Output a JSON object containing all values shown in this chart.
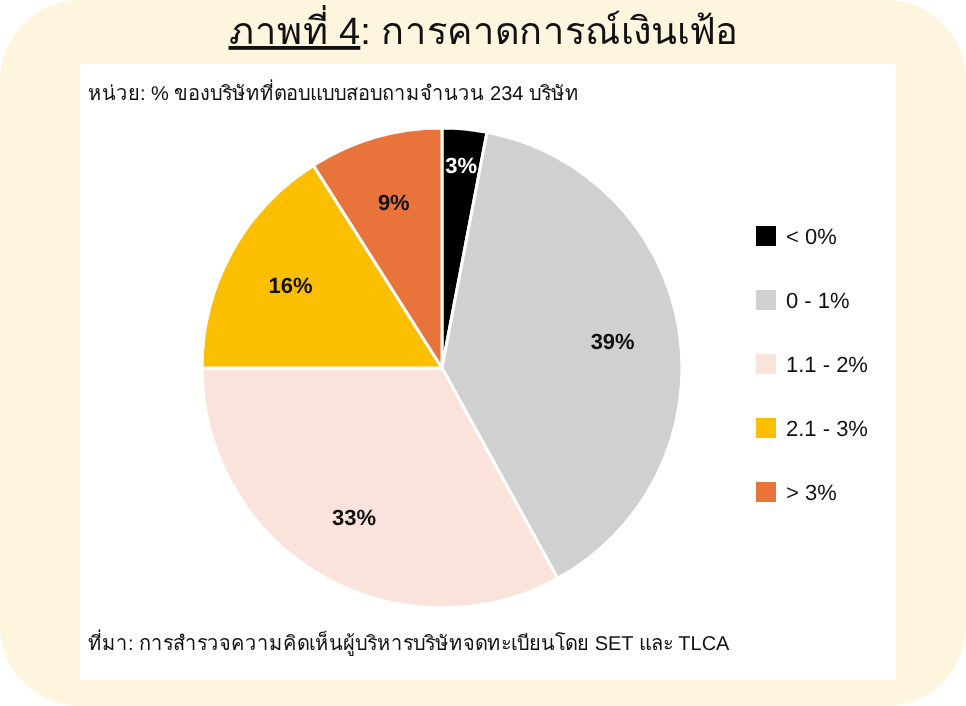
{
  "chart_data": {
    "type": "pie",
    "title": "ภาพที่ 4: การคาดการณ์เงินเฟ้อ",
    "subtitle": "หน่วย: % ของบริษัทที่ตอบแบบสอบถามจำนวน 234 บริษัท",
    "categories": [
      "< 0%",
      "0 - 1%",
      "1.1 - 2%",
      "2.1 - 3%",
      "> 3%"
    ],
    "values": [
      3,
      39,
      33,
      16,
      9
    ],
    "colors": [
      "#000000",
      "#d0d0d0",
      "#f9e3da",
      "#fbbf00",
      "#e8743b"
    ],
    "value_labels": [
      "3%",
      "39%",
      "33%",
      "16%",
      "9%"
    ],
    "legend": "right",
    "annotations": [
      "ที่มา: การสำรวจความคิดเห็นผู้บริหารบริษัทจดทะเบียนโดย SET และ TLCA"
    ]
  }
}
